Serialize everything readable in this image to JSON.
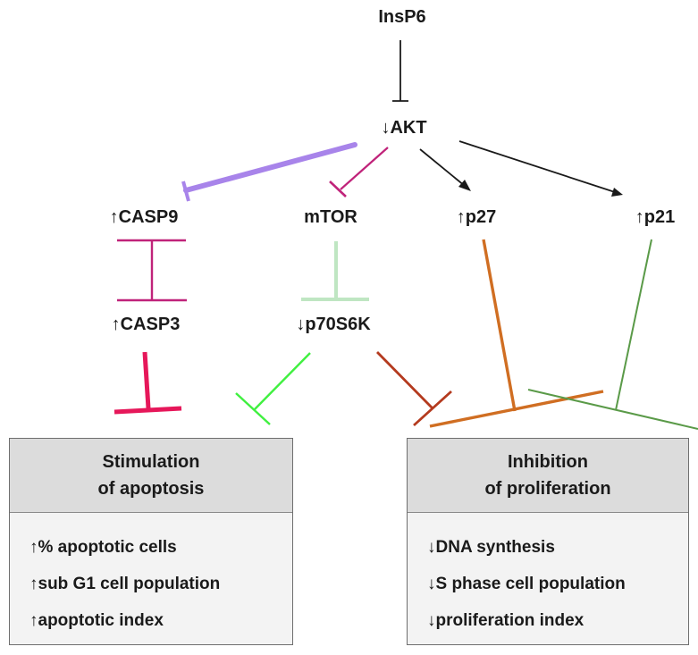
{
  "nodes": {
    "insp6": "InsP6",
    "akt": "↓AKT",
    "casp9": "↑CASP9",
    "mtor": "mTOR",
    "p27": "↑p27",
    "p21": "↑p21",
    "casp3": "↑CASP3",
    "p70s6k": "↓p70S6K"
  },
  "boxes": {
    "apoptosis": {
      "title_line1": "Stimulation",
      "title_line2": "of apoptosis",
      "items": [
        "↑% apoptotic cells",
        "↑sub G1 cell population",
        "↑apoptotic index"
      ]
    },
    "proliferation": {
      "title_line1": "Inhibition",
      "title_line2": "of proliferation",
      "items": [
        "↓DNA synthesis",
        "↓S phase cell population",
        "↓proliferation index"
      ]
    }
  },
  "colors": {
    "black": "#1a1a1a",
    "lavender": "#a884ea",
    "magenta": "#c0237a",
    "mint": "#bfe6c2",
    "crimson": "#e6175a",
    "green": "#40f040",
    "rust": "#b43a1e",
    "orange": "#d06e22",
    "darkgreen": "#5a9a48"
  }
}
